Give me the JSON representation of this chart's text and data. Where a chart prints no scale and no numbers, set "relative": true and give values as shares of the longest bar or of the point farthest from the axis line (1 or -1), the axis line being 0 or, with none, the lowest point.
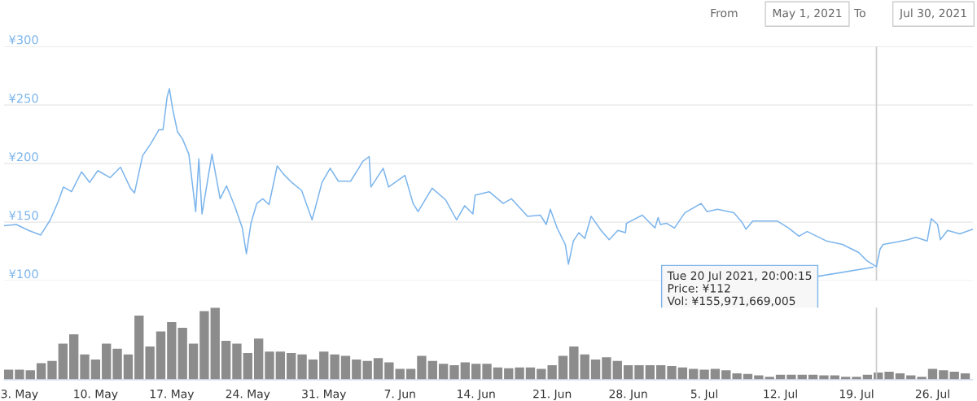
{
  "chart_data": [
    {
      "type": "line",
      "annotations": [
        "From",
        "May 1, 2021",
        "To",
        "Jul 30, 2021",
        {
          "text": "Tue 20 Jul 2021, 20:00:15\nPrice: ¥112\nVol: ¥155,971,669,005",
          "x": "2021-07-20T20:00",
          "y": 112
        }
      ],
      "xlim": [
        "2021-05-01T14:00",
        "2021-07-29T17:00"
      ],
      "ylim": [
        100,
        300
      ],
      "yticks": [
        {
          "value": 100,
          "label": "¥100"
        },
        {
          "value": 150,
          "label": "¥150"
        },
        {
          "value": 200,
          "label": "¥200"
        },
        {
          "value": 250,
          "label": "¥250"
        },
        {
          "value": 300,
          "label": "¥300"
        }
      ],
      "grid": "y",
      "tick_labels": "y",
      "ref_lines": [
        {
          "axis": "x",
          "value": "2021-07-20T20:00",
          "label": null,
          "color": "#cccccc"
        }
      ],
      "series": [
        {
          "color": "#7cb5ec",
          "x": [
            "2021-05-01T14:00",
            "2021-05-02T17:00",
            "2021-05-03T20:00",
            "2021-05-04T23:00",
            "2021-05-05T20:00",
            "2021-05-06T14:00",
            "2021-05-07T01:00",
            "2021-05-07T19:00",
            "2021-05-08T17:00",
            "2021-05-09T11:00",
            "2021-05-10T05:00",
            "2021-05-11T08:00",
            "2021-05-12T07:00",
            "2021-05-13T05:00",
            "2021-05-13T14:00",
            "2021-05-14T08:00",
            "2021-05-15T02:00",
            "2021-05-15T20:00",
            "2021-05-16T05:00",
            "2021-05-16T14:00",
            "2021-05-16T19:00",
            "2021-05-17T02:00",
            "2021-05-17T13:00",
            "2021-05-18T00:00",
            "2021-05-18T14:00",
            "2021-05-19T05:00",
            "2021-05-19T12:00",
            "2021-05-19T19:00",
            "2021-05-20T17:00",
            "2021-05-21T11:00",
            "2021-05-22T01:00",
            "2021-05-22T19:00",
            "2021-05-23T12:00",
            "2021-05-23T21:00",
            "2021-05-24T07:00",
            "2021-05-24T20:00",
            "2021-05-25T09:00",
            "2021-05-25T23:00",
            "2021-05-26T17:00",
            "2021-05-27T07:00",
            "2021-05-28T01:00",
            "2021-05-28T23:00",
            "2021-05-29T22:00",
            "2021-05-30T20:00",
            "2021-05-31T14:00",
            "2021-06-01T08:00",
            "2021-06-02T11:00",
            "2021-06-03T05:00",
            "2021-06-03T14:00",
            "2021-06-04T04:00",
            "2021-06-04T08:00",
            "2021-06-05T11:00",
            "2021-06-05T23:00",
            "2021-06-07T11:00",
            "2021-06-08T05:00",
            "2021-06-08T16:00",
            "2021-06-09T23:00",
            "2021-06-11T05:00",
            "2021-06-12T05:00",
            "2021-06-12T23:00",
            "2021-06-13T17:00",
            "2021-06-13T22:00",
            "2021-06-15T05:00",
            "2021-06-16T12:00",
            "2021-06-17T06:00",
            "2021-06-18T18:00",
            "2021-06-19T22:00",
            "2021-06-20T11:00",
            "2021-06-20T20:00",
            "2021-06-21T11:00",
            "2021-06-22T05:00",
            "2021-06-22T12:00",
            "2021-06-22T23:00",
            "2021-06-23T11:00",
            "2021-06-24T00:00",
            "2021-06-24T14:00",
            "2021-06-25T12:00",
            "2021-06-26T06:00",
            "2021-06-27T01:00",
            "2021-06-27T18:00",
            "2021-06-27T20:00",
            "2021-06-29T07:00",
            "2021-06-30T11:00",
            "2021-06-30T18:00",
            "2021-06-30T23:00",
            "2021-07-01T13:00",
            "2021-07-02T06:00",
            "2021-07-03T05:00",
            "2021-07-04T17:00",
            "2021-07-05T06:00",
            "2021-07-06T05:00",
            "2021-07-07T17:00",
            "2021-07-08T11:00",
            "2021-07-08T20:00",
            "2021-07-09T11:00",
            "2021-07-11T17:00",
            "2021-07-12T18:00",
            "2021-07-13T17:00",
            "2021-07-14T11:00",
            "2021-07-16T05:00",
            "2021-07-17T17:00",
            "2021-07-19T05:00",
            "2021-07-19T23:00",
            "2021-07-20T20:00",
            "2021-07-21T04:00",
            "2021-07-21T11:00",
            "2021-07-22T17:00",
            "2021-07-23T17:00",
            "2021-07-24T11:00",
            "2021-07-25T12:00",
            "2021-07-25T21:00",
            "2021-07-26T11:00",
            "2021-07-26T17:00",
            "2021-07-27T09:00",
            "2021-07-28T12:00",
            "2021-07-29T17:00"
          ],
          "values": [
            147,
            148,
            143,
            139,
            152,
            168,
            180,
            176,
            193,
            184,
            194,
            188,
            197,
            179,
            175,
            207,
            217,
            229,
            229,
            257,
            264,
            247,
            227,
            221,
            208,
            159,
            204,
            157,
            208,
            170,
            181,
            164,
            145,
            123,
            149,
            166,
            170,
            165,
            198,
            191,
            184,
            177,
            152,
            184,
            196,
            185,
            185,
            196,
            202,
            206,
            180,
            196,
            180,
            190,
            166,
            159,
            179,
            169,
            152,
            164,
            157,
            173,
            176,
            166,
            170,
            155,
            156,
            148,
            161,
            145,
            131,
            114,
            134,
            141,
            136,
            155,
            143,
            135,
            143,
            141,
            149,
            156,
            145,
            154,
            148,
            149,
            145,
            158,
            166,
            159,
            161,
            158,
            150,
            144,
            151,
            151,
            145,
            138,
            142,
            134,
            131,
            124,
            117,
            112,
            127,
            131,
            133,
            135,
            137,
            134,
            153,
            148,
            135,
            143,
            140,
            144
          ]
        }
      ]
    },
    {
      "type": "bar",
      "relative": true,
      "tick_labels": "x",
      "xlim": [
        "2021-05-01T14:00",
        "2021-07-29T17:00"
      ],
      "xticks": [
        {
          "value": "2021-05-03",
          "label": "3. May"
        },
        {
          "value": "2021-05-10",
          "label": "10. May"
        },
        {
          "value": "2021-05-17",
          "label": "17. May"
        },
        {
          "value": "2021-05-24",
          "label": "24. May"
        },
        {
          "value": "2021-05-31",
          "label": "31. May"
        },
        {
          "value": "2021-06-07",
          "label": "7. Jun"
        },
        {
          "value": "2021-06-14",
          "label": "14. Jun"
        },
        {
          "value": "2021-06-21",
          "label": "21. Jun"
        },
        {
          "value": "2021-06-28",
          "label": "28. Jun"
        },
        {
          "value": "2021-07-05",
          "label": "5. Jul"
        },
        {
          "value": "2021-07-12",
          "label": "12. Jul"
        },
        {
          "value": "2021-07-19",
          "label": "19. Jul"
        },
        {
          "value": "2021-07-26",
          "label": "26. Jul"
        }
      ],
      "ref_lines": [
        {
          "axis": "x",
          "value": "2021-07-20T20:00",
          "label": null,
          "color": "#cccccc"
        }
      ],
      "series": [
        {
          "color": "#8c8c8c",
          "x": [
            "2021-05-02",
            "2021-05-03",
            "2021-05-04",
            "2021-05-05",
            "2021-05-06",
            "2021-05-07",
            "2021-05-08",
            "2021-05-09",
            "2021-05-10",
            "2021-05-11",
            "2021-05-12",
            "2021-05-13",
            "2021-05-14",
            "2021-05-15",
            "2021-05-16",
            "2021-05-17",
            "2021-05-18",
            "2021-05-19",
            "2021-05-20",
            "2021-05-21",
            "2021-05-22",
            "2021-05-23",
            "2021-05-24",
            "2021-05-25",
            "2021-05-26",
            "2021-05-27",
            "2021-05-28",
            "2021-05-29",
            "2021-05-30",
            "2021-05-31",
            "2021-06-01",
            "2021-06-02",
            "2021-06-03",
            "2021-06-04",
            "2021-06-05",
            "2021-06-06",
            "2021-06-07",
            "2021-06-08",
            "2021-06-09",
            "2021-06-10",
            "2021-06-11",
            "2021-06-12",
            "2021-06-13",
            "2021-06-14",
            "2021-06-15",
            "2021-06-16",
            "2021-06-17",
            "2021-06-18",
            "2021-06-19",
            "2021-06-20",
            "2021-06-21",
            "2021-06-22",
            "2021-06-23",
            "2021-06-24",
            "2021-06-25",
            "2021-06-26",
            "2021-06-27",
            "2021-06-28",
            "2021-06-29",
            "2021-06-30",
            "2021-07-01",
            "2021-07-02",
            "2021-07-03",
            "2021-07-04",
            "2021-07-05",
            "2021-07-06",
            "2021-07-07",
            "2021-07-08",
            "2021-07-09",
            "2021-07-10",
            "2021-07-11",
            "2021-07-12",
            "2021-07-13",
            "2021-07-14",
            "2021-07-15",
            "2021-07-16",
            "2021-07-17",
            "2021-07-18",
            "2021-07-19",
            "2021-07-20",
            "2021-07-21",
            "2021-07-22",
            "2021-07-23",
            "2021-07-24",
            "2021-07-25",
            "2021-07-26",
            "2021-07-27",
            "2021-07-28",
            "2021-07-29"
          ],
          "values": [
            0.14,
            0.14,
            0.13,
            0.23,
            0.26,
            0.5,
            0.63,
            0.35,
            0.28,
            0.5,
            0.43,
            0.35,
            0.89,
            0.46,
            0.67,
            0.8,
            0.72,
            0.5,
            0.95,
            1.0,
            0.54,
            0.5,
            0.37,
            0.57,
            0.39,
            0.39,
            0.37,
            0.35,
            0.28,
            0.39,
            0.35,
            0.33,
            0.28,
            0.26,
            0.3,
            0.24,
            0.15,
            0.15,
            0.33,
            0.26,
            0.22,
            0.2,
            0.24,
            0.22,
            0.22,
            0.17,
            0.16,
            0.17,
            0.17,
            0.15,
            0.2,
            0.33,
            0.46,
            0.35,
            0.28,
            0.31,
            0.26,
            0.2,
            0.2,
            0.2,
            0.2,
            0.19,
            0.17,
            0.15,
            0.14,
            0.15,
            0.13,
            0.09,
            0.08,
            0.06,
            0.04,
            0.07,
            0.07,
            0.07,
            0.07,
            0.06,
            0.06,
            0.04,
            0.04,
            0.07,
            0.1,
            0.11,
            0.09,
            0.06,
            0.04,
            0.15,
            0.13,
            0.11,
            0.09
          ]
        }
      ]
    }
  ]
}
